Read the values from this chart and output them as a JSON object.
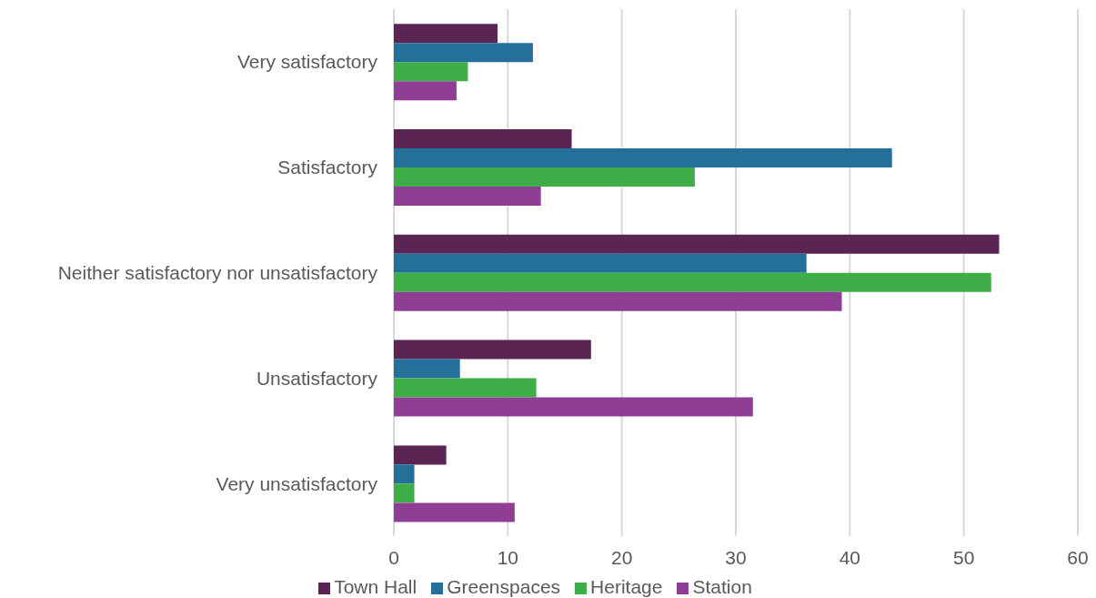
{
  "chart_data": {
    "type": "bar",
    "orientation": "horizontal",
    "categories": [
      "Very satisfactory",
      "Satisfactory",
      "Neither satisfactory nor unsatisfactory",
      "Unsatisfactory",
      "Very unsatisfactory"
    ],
    "series": [
      {
        "name": "Town Hall",
        "color": "#5a2553",
        "values": [
          9.1,
          15.6,
          53.1,
          17.3,
          4.6
        ]
      },
      {
        "name": "Greenspaces",
        "color": "#24709a",
        "values": [
          12.2,
          43.7,
          36.2,
          5.8,
          1.8
        ]
      },
      {
        "name": "Heritage",
        "color": "#3fae49",
        "values": [
          6.5,
          26.4,
          52.4,
          12.5,
          1.8
        ]
      },
      {
        "name": "Station",
        "color": "#8e3f93",
        "values": [
          5.5,
          12.9,
          39.3,
          31.5,
          10.6
        ]
      }
    ],
    "xlim": [
      0,
      60
    ],
    "xticks": [
      0,
      10,
      20,
      30,
      40,
      50,
      60
    ],
    "grid": "x",
    "legend": "bottom"
  }
}
